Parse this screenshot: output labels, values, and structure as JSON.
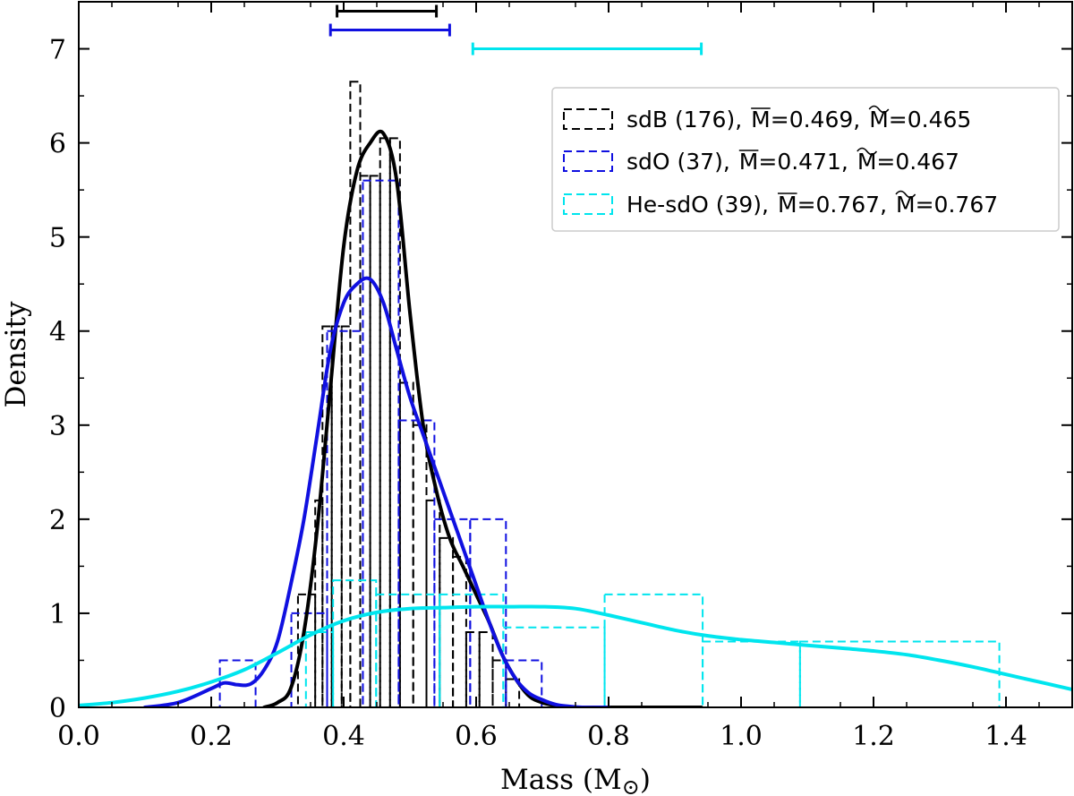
{
  "chart_data": {
    "type": "histogram+kde",
    "xlabel": "Mass (M⊙)",
    "xlabel_base": "Mass (M",
    "xlabel_sub": "⊙",
    "xlabel_close": ")",
    "ylabel": "Density",
    "xlim": [
      0.0,
      1.5
    ],
    "ylim": [
      0.0,
      7.5
    ],
    "xticks": [
      0.0,
      0.2,
      0.4,
      0.6,
      0.8,
      1.0,
      1.2,
      1.4
    ],
    "xtick_labels": [
      "0.0",
      "0.2",
      "0.4",
      "0.6",
      "0.8",
      "1.0",
      "1.2",
      "1.4"
    ],
    "yticks": [
      0,
      1,
      2,
      3,
      4,
      5,
      6,
      7
    ],
    "ytick_labels": [
      "0",
      "1",
      "2",
      "3",
      "4",
      "5",
      "6",
      "7"
    ],
    "legend_position": "top-right",
    "series": [
      {
        "name": "sdB (176)",
        "legend_label": "sdB (176),",
        "mean_label": "M̅=0.469,",
        "median_label": "M̃=0.465",
        "mean_value": "=0.469,",
        "median_value": "=0.465",
        "color": "#000000",
        "errorbar": {
          "y": 7.4,
          "x_low": 0.39,
          "x_high": 0.54
        },
        "hist_edges": [
          0.32,
          0.331,
          0.357,
          0.368,
          0.382,
          0.397,
          0.41,
          0.425,
          0.44,
          0.455,
          0.47,
          0.485,
          0.505,
          0.525,
          0.545,
          0.565,
          0.585,
          0.605,
          0.625,
          0.645,
          0.665
        ],
        "hist_heights": [
          0.0,
          1.2,
          2.2,
          4.05,
          4.05,
          4.05,
          6.65,
          5.65,
          5.65,
          6.05,
          6.05,
          3.45,
          3.0,
          2.2,
          1.8,
          1.6,
          0.8,
          0.8,
          0.5,
          0.3
        ],
        "kde_x": [
          0.28,
          0.3,
          0.32,
          0.34,
          0.36,
          0.38,
          0.4,
          0.42,
          0.44,
          0.46,
          0.48,
          0.5,
          0.52,
          0.54,
          0.56,
          0.58,
          0.6,
          0.62,
          0.64,
          0.66,
          0.68,
          0.7,
          0.72,
          0.74,
          0.78,
          0.82,
          0.86,
          0.9,
          0.94
        ],
        "kde_y": [
          0.0,
          0.05,
          0.2,
          0.8,
          1.9,
          3.4,
          4.9,
          5.7,
          6.0,
          6.1,
          5.6,
          4.2,
          3.0,
          2.3,
          1.8,
          1.5,
          1.2,
          0.9,
          0.55,
          0.3,
          0.12,
          0.05,
          0.02,
          0.0,
          0.0,
          0.0,
          0.0,
          0.0,
          0.0
        ]
      },
      {
        "name": "sdO (37)",
        "legend_label": "sdO (37),",
        "mean_label": "M̅=0.471,",
        "median_label": "M̃=0.467",
        "mean_value": "=0.471,",
        "median_value": "=0.467",
        "color": "#1010e0",
        "errorbar": {
          "y": 7.2,
          "x_low": 0.38,
          "x_high": 0.56
        },
        "hist_edges": [
          0.213,
          0.267,
          0.321,
          0.375,
          0.429,
          0.483,
          0.537,
          0.591,
          0.645,
          0.699
        ],
        "hist_heights": [
          0.5,
          0.0,
          1.0,
          4.0,
          5.6,
          3.05,
          2.0,
          2.0,
          0.5
        ],
        "kde_x": [
          0.1,
          0.15,
          0.2,
          0.22,
          0.24,
          0.26,
          0.28,
          0.3,
          0.32,
          0.34,
          0.36,
          0.38,
          0.4,
          0.42,
          0.44,
          0.46,
          0.48,
          0.5,
          0.52,
          0.54,
          0.56,
          0.58,
          0.6,
          0.62,
          0.64,
          0.66,
          0.68,
          0.7,
          0.72,
          0.74,
          0.76,
          0.8
        ],
        "kde_y": [
          0.0,
          0.05,
          0.2,
          0.26,
          0.24,
          0.25,
          0.4,
          0.7,
          1.3,
          2.0,
          2.9,
          3.8,
          4.3,
          4.5,
          4.55,
          4.3,
          3.8,
          3.3,
          2.9,
          2.5,
          2.1,
          1.7,
          1.3,
          0.9,
          0.55,
          0.3,
          0.15,
          0.08,
          0.03,
          0.01,
          0.0,
          0.0
        ]
      },
      {
        "name": "He-sdO (39)",
        "legend_label": "He-sdO (39),",
        "mean_label": "M̅=0.767,",
        "median_label": "M̃=0.767",
        "mean_value": "=0.767,",
        "median_value": "=0.767",
        "color": "#00e5ee",
        "errorbar": {
          "y": 7.0,
          "x_low": 0.595,
          "x_high": 0.94
        },
        "hist_edges": [
          0.343,
          0.384,
          0.449,
          0.545,
          0.641,
          0.794,
          0.942,
          1.089,
          1.39
        ],
        "hist_heights": [
          0.8,
          1.35,
          1.2,
          1.2,
          0.85,
          1.2,
          0.7,
          0.7
        ],
        "kde_x": [
          0.0,
          0.05,
          0.1,
          0.15,
          0.2,
          0.25,
          0.3,
          0.35,
          0.4,
          0.45,
          0.5,
          0.55,
          0.6,
          0.65,
          0.7,
          0.75,
          0.8,
          0.85,
          0.9,
          0.95,
          1.0,
          1.05,
          1.1,
          1.15,
          1.2,
          1.25,
          1.3,
          1.35,
          1.4,
          1.45,
          1.5
        ],
        "kde_y": [
          0.02,
          0.05,
          0.1,
          0.17,
          0.27,
          0.4,
          0.58,
          0.77,
          0.92,
          1.01,
          1.05,
          1.06,
          1.07,
          1.07,
          1.07,
          1.05,
          0.98,
          0.9,
          0.82,
          0.76,
          0.72,
          0.69,
          0.66,
          0.63,
          0.6,
          0.56,
          0.5,
          0.43,
          0.35,
          0.27,
          0.19
        ]
      }
    ]
  }
}
